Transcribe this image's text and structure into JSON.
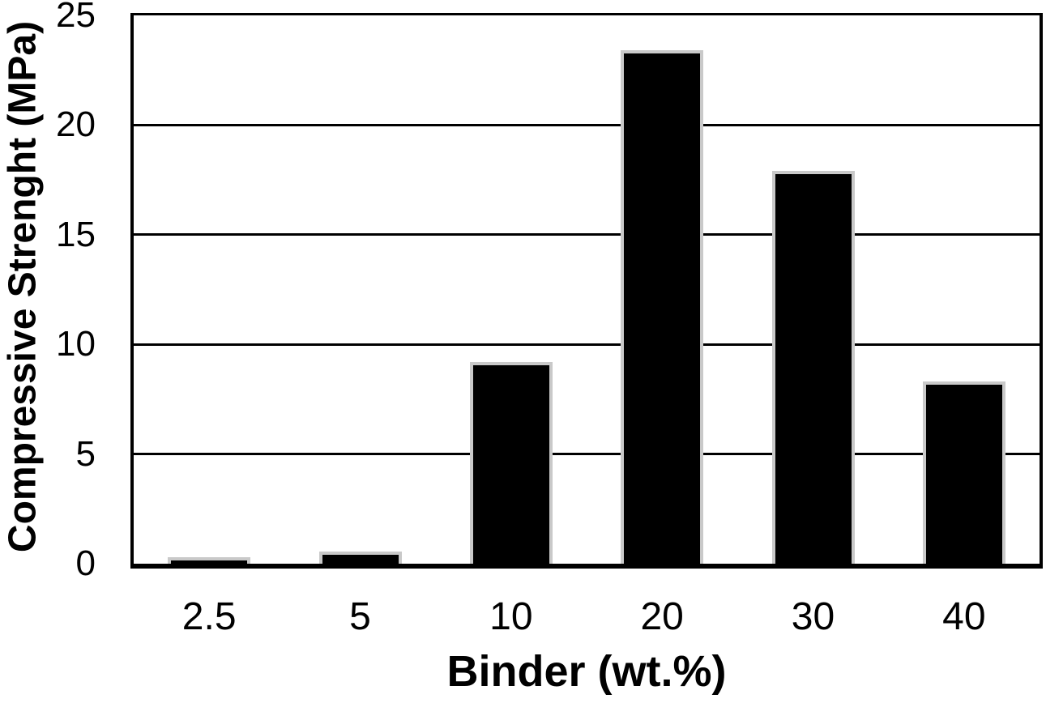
{
  "figure": {
    "background": "#ffffff"
  },
  "chart_data": {
    "type": "bar",
    "title": "",
    "xlabel": "Binder (wt.%)",
    "ylabel": "Compressive Strenght (MPa)",
    "categories": [
      "2.5",
      "5",
      "10",
      "20",
      "30",
      "40"
    ],
    "values": [
      0.3,
      0.55,
      9.2,
      23.4,
      17.9,
      8.3
    ],
    "series": [
      {
        "name": "Compressive Strenght",
        "values": [
          0.3,
          0.55,
          9.2,
          23.4,
          17.9,
          8.3
        ]
      }
    ],
    "ylim": [
      0,
      25
    ],
    "ytick_interval": 5,
    "yticks": [
      0,
      5,
      10,
      15,
      20,
      25
    ],
    "grid": "horizontal",
    "legend_position": "none",
    "colors": {
      "bar_fill": "#000000",
      "bar_border": "#c9c9c9",
      "gridline": "#000000",
      "axis_line": "#000000",
      "text": "#000000",
      "background": "#ffffff"
    }
  }
}
